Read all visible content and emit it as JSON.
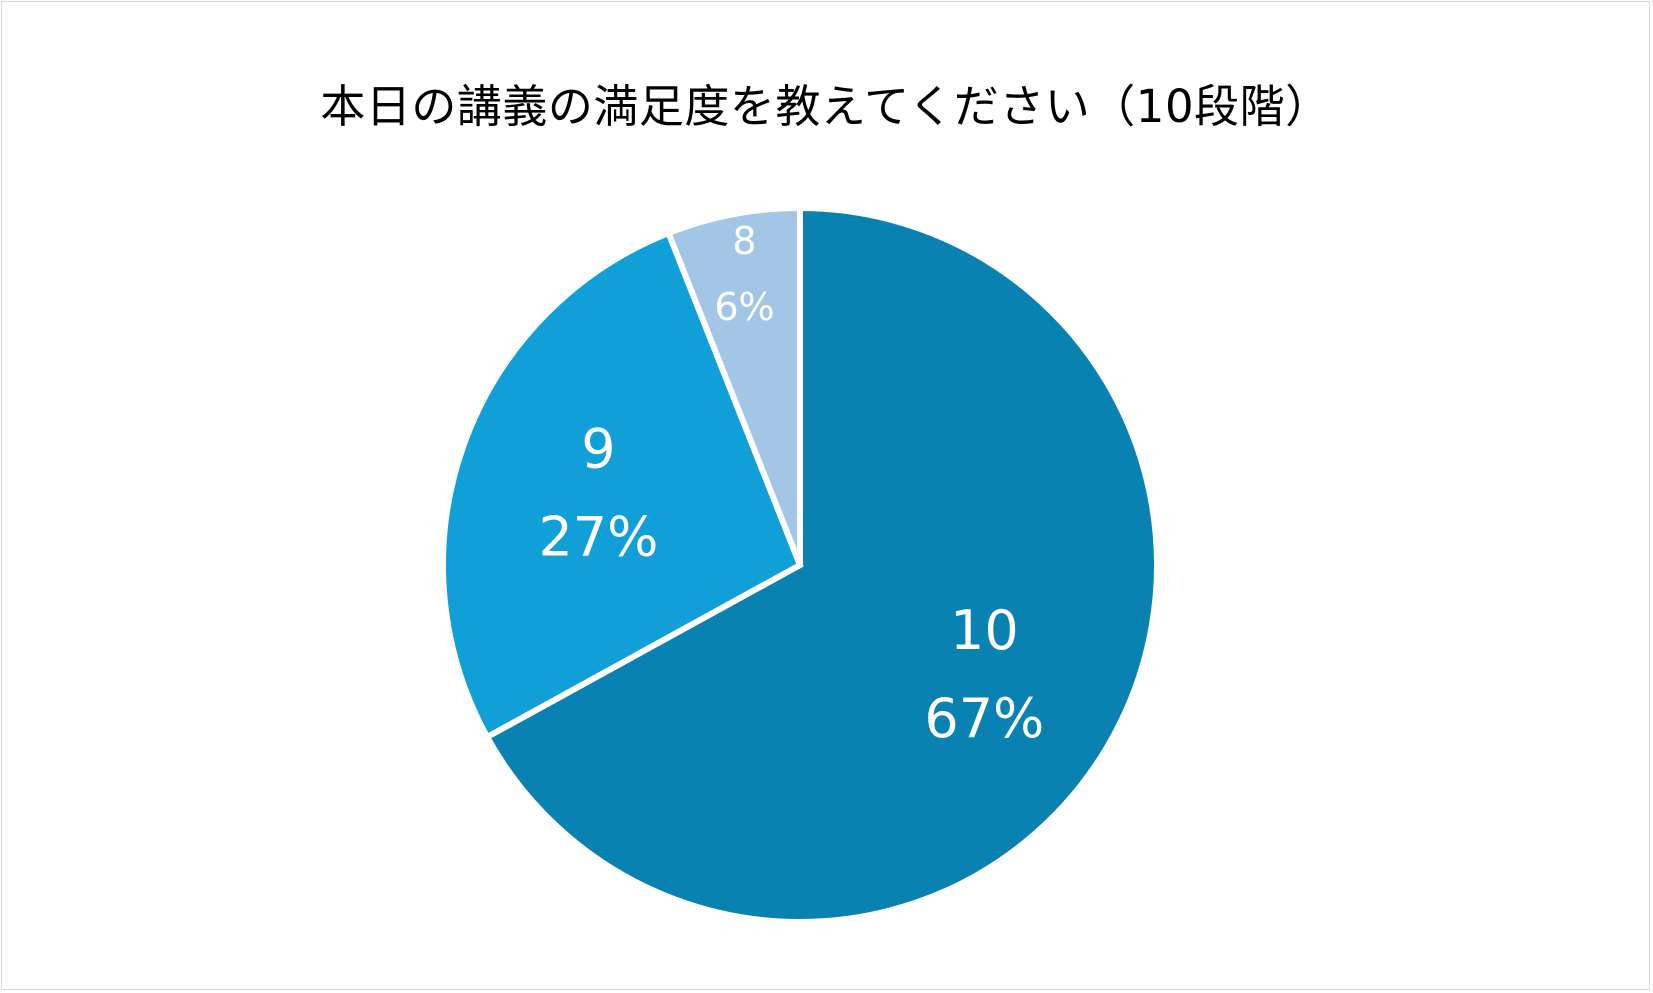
{
  "chart_data": {
    "type": "pie",
    "title": "本日の講義の満足度を教えてください（10段階）",
    "categories": [
      "10",
      "9",
      "8"
    ],
    "values": [
      67,
      27,
      6
    ],
    "value_labels": [
      "67%",
      "27%",
      "6%"
    ],
    "legend": "none",
    "colors": [
      "#0a82b1",
      "#109fd7",
      "#a3c6e6"
    ],
    "slice_border_color": "#ffffff"
  }
}
